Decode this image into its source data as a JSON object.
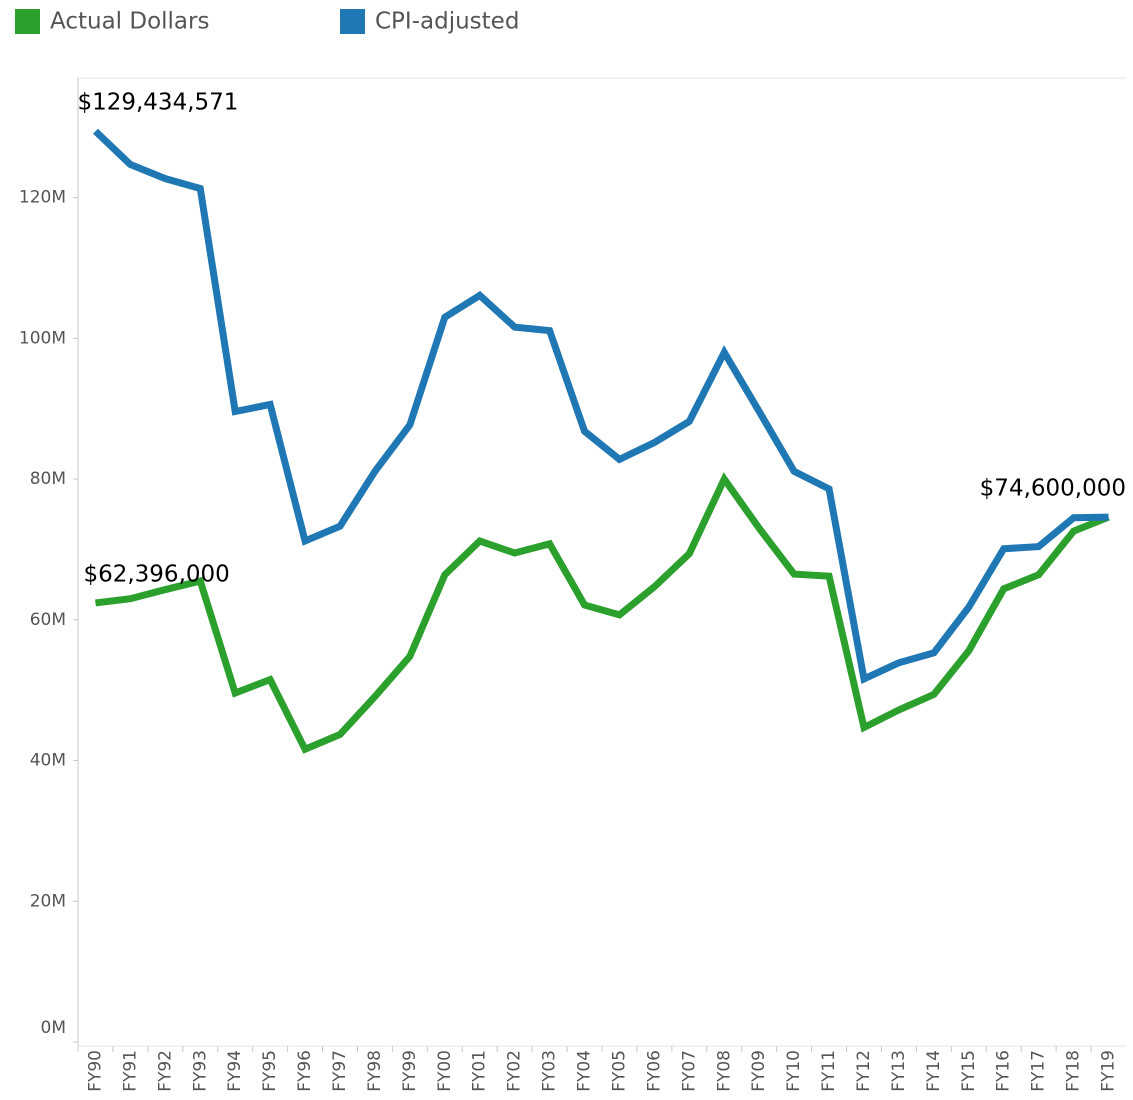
{
  "chart_data": {
    "type": "line",
    "categories": [
      "FY90",
      "FY91",
      "FY92",
      "FY93",
      "FY94",
      "FY95",
      "FY96",
      "FY97",
      "FY98",
      "FY99",
      "FY00",
      "FY01",
      "FY02",
      "FY03",
      "FY04",
      "FY05",
      "FY06",
      "FY07",
      "FY08",
      "FY09",
      "FY10",
      "FY11",
      "FY12",
      "FY13",
      "FY14",
      "FY15",
      "FY16",
      "FY17",
      "FY18",
      "FY19"
    ],
    "series": [
      {
        "name": "Actual Dollars",
        "color": "#2ca02c",
        "values": [
          62396000,
          63000000,
          64300000,
          65500000,
          49600000,
          51500000,
          41600000,
          43700000,
          49100000,
          54800000,
          66400000,
          71200000,
          69500000,
          70800000,
          62100000,
          60700000,
          64700000,
          69400000,
          80000000,
          73000000,
          66500000,
          66200000,
          44700000,
          47200000,
          49400000,
          55600000,
          64400000,
          66400000,
          72600000,
          74600000
        ],
        "value_labels": [
          "$62,396,000",
          null,
          null,
          null,
          null,
          null,
          null,
          null,
          null,
          null,
          null,
          null,
          null,
          null,
          null,
          null,
          null,
          null,
          null,
          null,
          null,
          null,
          null,
          null,
          null,
          null,
          null,
          null,
          null,
          null
        ]
      },
      {
        "name": "CPI-adjusted",
        "color": "#1f77b4",
        "values": [
          129434571,
          124700000,
          122700000,
          121300000,
          89600000,
          90600000,
          71200000,
          73300000,
          81100000,
          87700000,
          103000000,
          106100000,
          101600000,
          101100000,
          86800000,
          82800000,
          85200000,
          88200000,
          98000000,
          89600000,
          81100000,
          78600000,
          51600000,
          53900000,
          55300000,
          61800000,
          70100000,
          70400000,
          74500000,
          74600000
        ],
        "value_labels": [
          "$129,434,571",
          null,
          null,
          null,
          null,
          null,
          null,
          null,
          null,
          null,
          null,
          null,
          null,
          null,
          null,
          null,
          null,
          null,
          null,
          null,
          null,
          null,
          null,
          null,
          null,
          null,
          null,
          null,
          null,
          "$74,600,000"
        ]
      }
    ],
    "ylim": [
      0,
      137000000
    ],
    "yticks": [
      {
        "value": 0,
        "label": "0M"
      },
      {
        "value": 20000000,
        "label": "20M"
      },
      {
        "value": 40000000,
        "label": "40M"
      },
      {
        "value": 60000000,
        "label": "60M"
      },
      {
        "value": 80000000,
        "label": "80M"
      },
      {
        "value": 100000000,
        "label": "100M"
      },
      {
        "value": 120000000,
        "label": "120M"
      }
    ],
    "grid": false,
    "legend": "top-left"
  }
}
